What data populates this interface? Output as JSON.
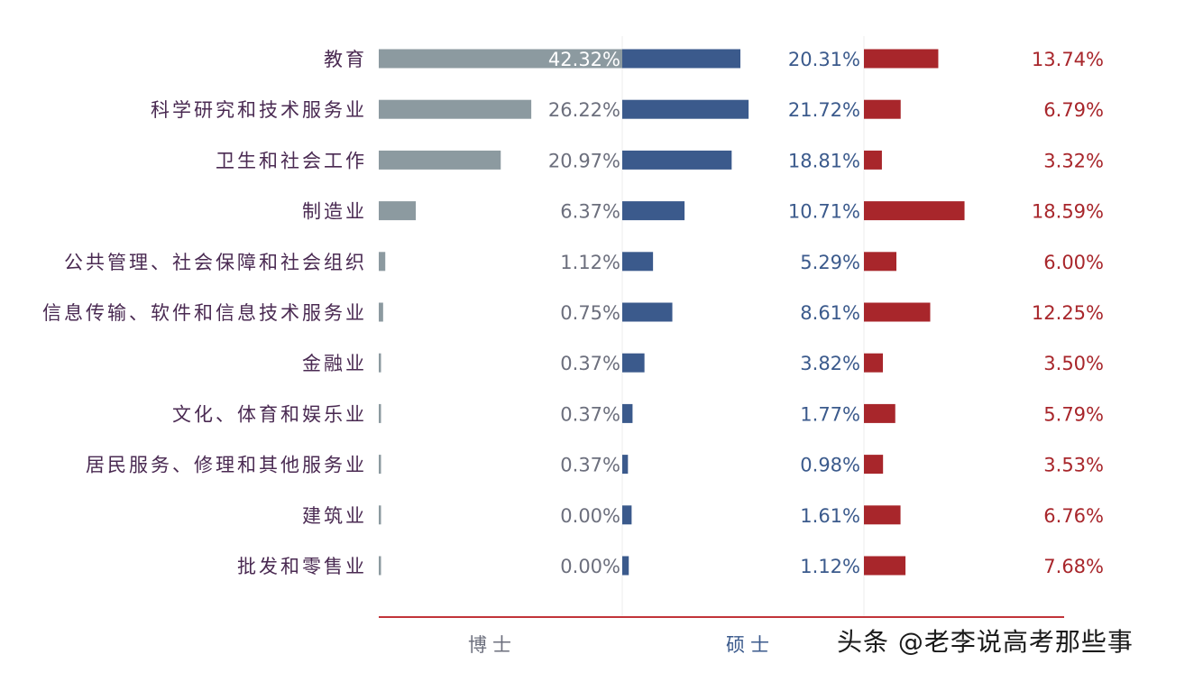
{
  "chart_data": {
    "type": "bar",
    "categories": [
      "教育",
      "科学研究和技术服务业",
      "卫生和社会工作",
      "制造业",
      "公共管理、社会保障和社会组织",
      "信息传输、软件和信息技术服务业",
      "金融业",
      "文化、体育和娱乐业",
      "居民服务、修理和其他服务业",
      "建筑业",
      "批发和零售业"
    ],
    "series": [
      {
        "name": "博士",
        "values": [
          42.32,
          26.22,
          20.97,
          6.37,
          1.12,
          0.75,
          0.37,
          0.37,
          0.37,
          0.0,
          0.0
        ],
        "labels": [
          "42.32%",
          "26.22%",
          "20.97%",
          "6.37%",
          "1.12%",
          "0.75%",
          "0.37%",
          "0.37%",
          "0.37%",
          "0.00%",
          "0.00%"
        ]
      },
      {
        "name": "硕士",
        "values": [
          20.31,
          21.72,
          18.81,
          10.71,
          5.29,
          8.61,
          3.82,
          1.77,
          0.98,
          1.61,
          1.12
        ],
        "labels": [
          "20.31%",
          "21.72%",
          "18.81%",
          "10.71%",
          "5.29%",
          "8.61%",
          "3.82%",
          "1.77%",
          "0.98%",
          "1.61%",
          "1.12%"
        ]
      },
      {
        "name": "",
        "values": [
          13.74,
          6.79,
          3.32,
          18.59,
          6.0,
          12.25,
          3.5,
          5.79,
          3.53,
          6.76,
          7.68
        ],
        "labels": [
          "13.74%",
          "6.79%",
          "3.32%",
          "18.59%",
          "6.00%",
          "12.25%",
          "3.50%",
          "5.79%",
          "3.53%",
          "6.76%",
          "7.68%"
        ]
      }
    ],
    "colors": [
      "#8c9aa0",
      "#3b5a8c",
      "#a8262b"
    ],
    "label_colors": [
      "#6c6f7d",
      "#3b5a8c",
      "#a8262b"
    ],
    "category_color": "#4a2a52",
    "axis_color": "#c2343a",
    "grid": false
  },
  "watermark": "头条 @老李说高考那些事"
}
